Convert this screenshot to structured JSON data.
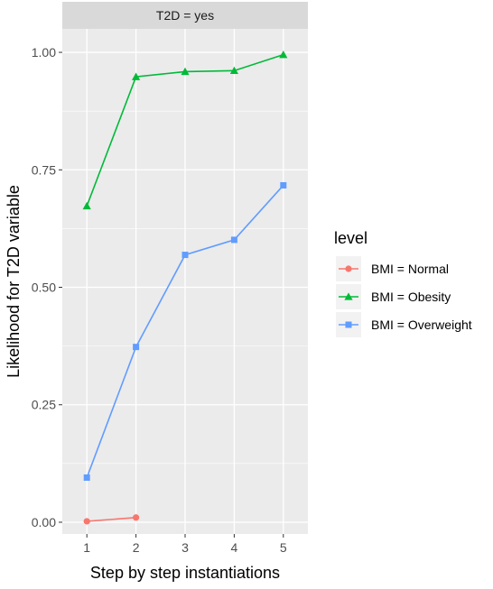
{
  "chart_data": {
    "type": "line",
    "facet_label": "T2D = yes",
    "xlabel": "Step by step instantiations",
    "ylabel": "Likelihood for T2D variable",
    "x_ticks": [
      1,
      2,
      3,
      4,
      5
    ],
    "y_ticks": [
      "0.00",
      "0.25",
      "0.50",
      "0.75",
      "1.00"
    ],
    "xlim": [
      0.5,
      5.5
    ],
    "ylim": [
      -0.025,
      1.05
    ],
    "grid": true,
    "legend_title": "level",
    "legend_position": "right",
    "series": [
      {
        "name": "BMI = Normal",
        "color": "#F8766D",
        "marker": "circle",
        "x": [
          1,
          2
        ],
        "y": [
          0.002,
          0.01
        ]
      },
      {
        "name": "BMI = Obesity",
        "color": "#00BA38",
        "marker": "triangle",
        "x": [
          1,
          2,
          3,
          4,
          5
        ],
        "y": [
          0.673,
          0.948,
          0.959,
          0.961,
          0.995
        ]
      },
      {
        "name": "BMI = Overweight",
        "color": "#619CFF",
        "marker": "square",
        "x": [
          1,
          2,
          3,
          4,
          5
        ],
        "y": [
          0.095,
          0.373,
          0.569,
          0.601,
          0.717
        ]
      }
    ]
  }
}
